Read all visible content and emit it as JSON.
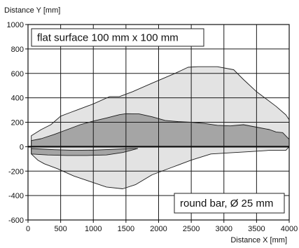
{
  "chart_data": {
    "type": "area",
    "xlabel": "Distance X [mm]",
    "ylabel": "Distance Y [mm]",
    "xlim": [
      0,
      4000
    ],
    "ylim": [
      -600,
      1000
    ],
    "xticks": [
      0,
      500,
      1000,
      1500,
      2000,
      2500,
      3000,
      3500,
      4000
    ],
    "yticks": [
      -600,
      -400,
      -200,
      0,
      200,
      400,
      600,
      800,
      1000
    ],
    "grid": true,
    "annotations": [
      {
        "id": "flat",
        "text": "flat surface 100 mm x 100 mm",
        "position": "top-left"
      },
      {
        "id": "round",
        "text": "round bar, Ø 25 mm",
        "position": "bottom-right"
      }
    ],
    "series": [
      {
        "id": "flat-surface-region",
        "fill": "#e3e3e3",
        "stroke": "#1a1a1a",
        "x": [
          50,
          200,
          350,
          500,
          650,
          750,
          1000,
          1250,
          1400,
          1600,
          1900,
          2250,
          2450,
          2600,
          2900,
          3150,
          3300,
          3500,
          3800,
          3950,
          4000,
          4000,
          3950,
          3700,
          3400,
          3100,
          2800,
          2500,
          2200,
          1900,
          1650,
          1450,
          1200,
          950,
          700,
          450,
          250,
          150,
          50
        ],
        "y": [
          90,
          140,
          180,
          250,
          280,
          300,
          350,
          410,
          410,
          450,
          520,
          600,
          650,
          655,
          655,
          630,
          550,
          450,
          330,
          260,
          220,
          0,
          -30,
          -30,
          -40,
          -50,
          -60,
          -110,
          -170,
          -230,
          -310,
          -345,
          -330,
          -285,
          -240,
          -180,
          -140,
          -110,
          -60
        ]
      },
      {
        "id": "flat-surface-upper-band",
        "fill": "#a5a5a5",
        "stroke": "#1a1a1a",
        "x": [
          50,
          200,
          400,
          600,
          800,
          1000,
          1200,
          1400,
          1500,
          1700,
          1900,
          2100,
          2300,
          2500,
          2700,
          2900,
          3100,
          3300,
          3500,
          3700,
          3800,
          3900,
          4000,
          4000,
          50
        ],
        "y": [
          50,
          65,
          100,
          140,
          180,
          210,
          235,
          262,
          270,
          268,
          245,
          215,
          205,
          200,
          190,
          175,
          170,
          180,
          160,
          140,
          120,
          115,
          60,
          0,
          0
        ]
      },
      {
        "id": "round-bar-lower-band",
        "fill": "#a5a5a5",
        "stroke": "#1a1a1a",
        "x": [
          50,
          300,
          600,
          900,
          1200,
          1450,
          1580,
          1680,
          1580,
          1300,
          1000,
          700,
          400,
          150,
          50
        ],
        "y": [
          -60,
          -68,
          -72,
          -72,
          -68,
          -48,
          -30,
          -15,
          -15,
          -22,
          -28,
          -30,
          -25,
          -18,
          -15
        ]
      }
    ]
  }
}
